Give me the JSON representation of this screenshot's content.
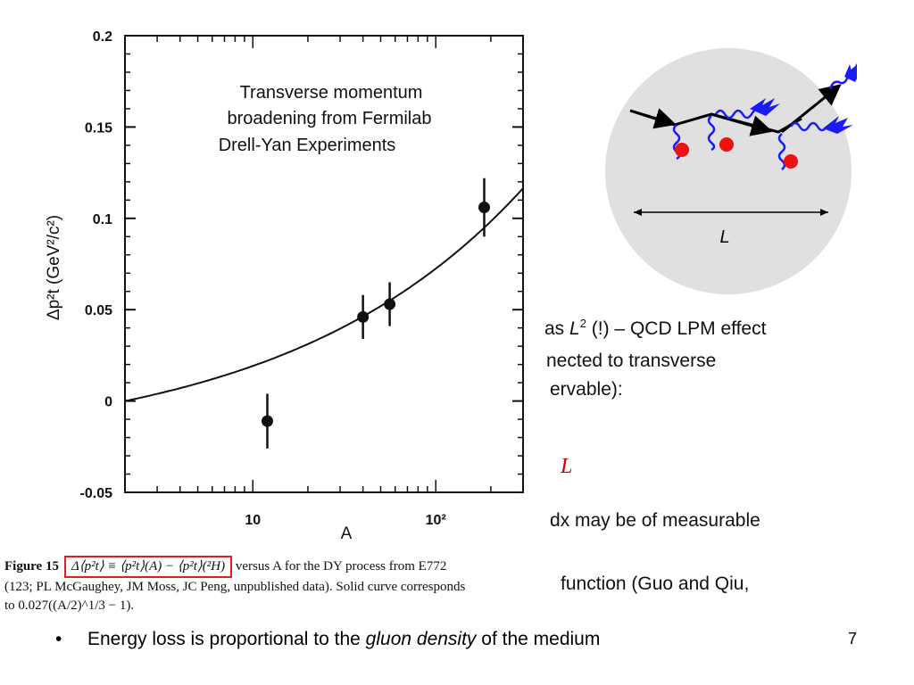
{
  "background_text": {
    "line1_prefix": "as ",
    "line1_var": "L",
    "line1_sup": "2",
    "line1_suffix": " (!) – QCD LPM effect",
    "line2": "nected to transverse",
    "line3": "ervable):",
    "red_symbol": "L",
    "line4": "dx may be of measurable",
    "line5": "function (Guo and Qiu,"
  },
  "figure": {
    "annotation": [
      "Transverse momentum",
      "broadening from Fermilab",
      "Drell-Yan Experiments"
    ],
    "ylabel": "Δp²t (GeV²/c²)",
    "xlabel": "A"
  },
  "chart_data": {
    "type": "scatter",
    "title": "",
    "xlabel": "A",
    "ylabel": "Δp²t (GeV²/c²)",
    "x_scale": "log",
    "xlim": [
      2,
      300
    ],
    "ylim": [
      -0.05,
      0.2
    ],
    "x_ticks": [
      "10",
      "10²"
    ],
    "y_ticks": [
      "0.2",
      "0.15",
      "0.1",
      "0.05",
      "0",
      "-0.05"
    ],
    "points": [
      {
        "x": 12,
        "y": -0.011,
        "err": 0.015
      },
      {
        "x": 40,
        "y": 0.046,
        "err": 0.012
      },
      {
        "x": 56,
        "y": 0.053,
        "err": 0.012
      },
      {
        "x": 184,
        "y": 0.106,
        "err": 0.016
      }
    ],
    "curve": {
      "formula": "0.027((A/2)^(1/3) - 1)"
    },
    "grid": false
  },
  "caption": {
    "label": "Figure 15",
    "boxed_formula": "Δ⟨p²t⟩ ≡ ⟨p²t⟩(A) − ⟨p²t⟩(²H)",
    "after_box": " versus A for the DY process from E772",
    "line2": "(123; PL McGaughey, JM Moss, JC Peng, unpublished data). Solid curve corresponds",
    "line3": "to 0.027((A/2)^1/3 − 1)."
  },
  "diagram": {
    "length_label": "L",
    "colors": {
      "circle": "#e0e0e0",
      "gluon": "#1a1aff",
      "scatter_center": "#ee1111"
    }
  },
  "bullet": {
    "marker": "•",
    "text_before": "Energy loss is proportional to the ",
    "text_italic": "gluon density",
    "text_after": " of the medium"
  },
  "page_number": "7"
}
